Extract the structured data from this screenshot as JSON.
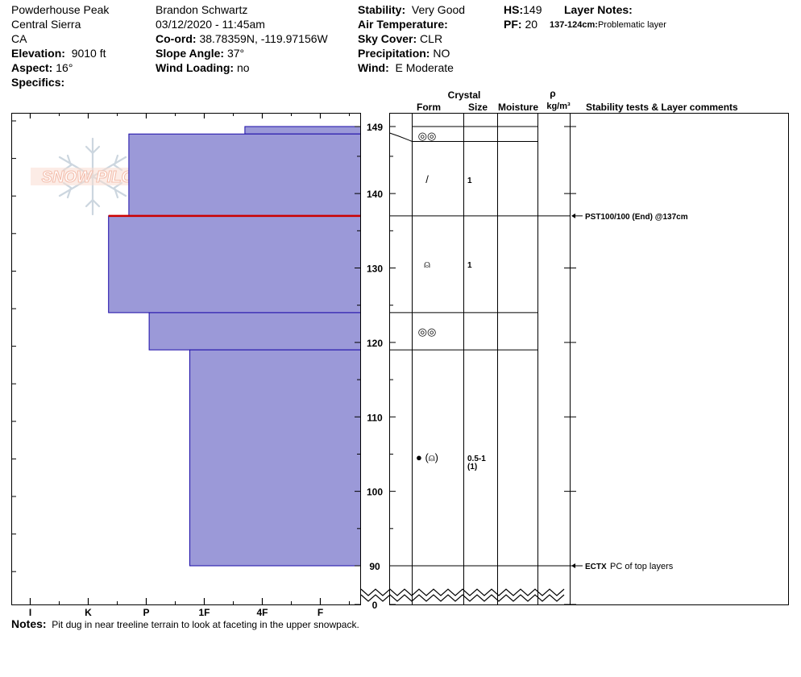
{
  "header": {
    "location": "Powderhouse Peak",
    "region": "Central Sierra",
    "state": "CA",
    "elevation_label": "Elevation:",
    "elevation_value": "9010 ft",
    "aspect_label": "Aspect:",
    "aspect_value": "16°",
    "specifics_label": "Specifics:",
    "observer": "Brandon Schwartz",
    "datetime": "03/12/2020 - 11:45am",
    "coord_label": "Co-ord:",
    "coord_value": "38.78359N, -119.97156W",
    "slope_label": "Slope Angle:",
    "slope_value": "37°",
    "wind_loading_label": "Wind Loading:",
    "wind_loading_value": "no",
    "stability_label": "Stability:",
    "stability_value": "Very Good",
    "air_temp_label": "Air Temperature:",
    "sky_label": "Sky Cover:",
    "sky_value": "CLR",
    "precip_label": "Precipitation:",
    "precip_value": "NO",
    "wind_label": "Wind:",
    "wind_value": "E Moderate",
    "hs_label": "HS:",
    "hs_value": "149",
    "pf_label": "PF:",
    "pf_value": "20",
    "layer_notes_label": "Layer Notes:",
    "layer_note_range": "137-124cm:",
    "layer_note_text": "Problematic layer"
  },
  "logo_text": "SNOW PILOT",
  "columns": {
    "crystal": "Crystal",
    "form": "Form",
    "size": "Size",
    "moisture": "Moisture",
    "rho": "ρ",
    "density_unit": "kg/m³",
    "stability": "Stability tests & Layer comments"
  },
  "colors": {
    "layer_fill": "#9b99d8",
    "layer_edge": "#1a0aa8",
    "weak_layer": "#cc0000",
    "logo_text": "#f3b9a6",
    "logo_flake": "#c7d2dc"
  },
  "notes": {
    "label": "Notes:",
    "text": "Pit dug in near treeline terrain to look at faceting in the upper snowpack."
  },
  "chart_data": {
    "type": "snow_profile",
    "hardness_scale": [
      "I",
      "K",
      "P",
      "1F",
      "4F",
      "F"
    ],
    "depth_ticks": [
      149,
      140,
      130,
      120,
      110,
      100,
      90,
      0
    ],
    "depth_range": [
      90,
      149
    ],
    "layers": [
      {
        "top": 149,
        "bottom": 148,
        "hardness": 3.7
      },
      {
        "top": 148,
        "bottom": 137,
        "hardness": 1.7
      },
      {
        "top": 137,
        "bottom": 124,
        "hardness": 1.35
      },
      {
        "top": 124,
        "bottom": 119,
        "hardness": 2.05
      },
      {
        "top": 119,
        "bottom": 90,
        "hardness": 2.75
      }
    ],
    "weak_layer_depth": 137,
    "grain_layers": [
      {
        "top": 149,
        "bottom": 147,
        "form_icon": "rounded-icon",
        "size": ""
      },
      {
        "top": 147,
        "bottom": 137,
        "form_icon": "decomposing-icon",
        "size": "1"
      },
      {
        "top": 137,
        "bottom": 124,
        "form_icon": "faceted-rounded-icon",
        "size": "1"
      },
      {
        "top": 124,
        "bottom": 119,
        "form_icon": "rounded-icon",
        "size": ""
      },
      {
        "top": 119,
        "bottom": 90,
        "form_icon": "melt-forms-faceted-icon",
        "size": "0.5-1",
        "size_sub": "(1)"
      }
    ],
    "form_icons": {
      "rounded-icon": "◎◎",
      "decomposing-icon": "/",
      "faceted-rounded-icon": "⍝",
      "melt-forms-faceted-icon": "● (⍝)"
    },
    "stability_tests": [
      {
        "depth": 137,
        "code": "PST100/100 (End) @137cm",
        "comment": ""
      },
      {
        "depth": 90,
        "code": "ECTX",
        "comment": "PC of top layers"
      }
    ]
  }
}
